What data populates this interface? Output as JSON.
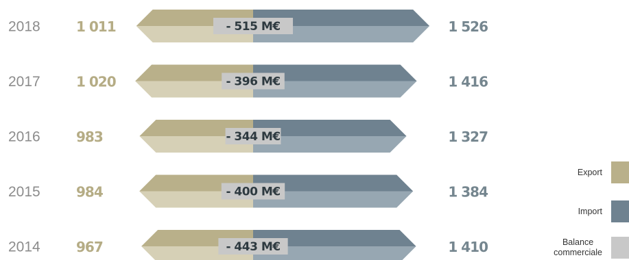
{
  "chart_data": {
    "type": "bar",
    "title": "",
    "unit_label": "M€",
    "rows": [
      {
        "year": "2018",
        "export": 1011,
        "export_label": "1 011",
        "import": 1526,
        "import_label": "1 526",
        "balance": -515,
        "balance_label": "- 515 M€"
      },
      {
        "year": "2017",
        "export": 1020,
        "export_label": "1 020",
        "import": 1416,
        "import_label": "1 416",
        "balance": -396,
        "balance_label": "- 396 M€"
      },
      {
        "year": "2016",
        "export": 983,
        "export_label": "983",
        "import": 1327,
        "import_label": "1 327",
        "balance": -344,
        "balance_label": "- 344 M€"
      },
      {
        "year": "2015",
        "export": 984,
        "export_label": "984",
        "import": 1384,
        "import_label": "1 384",
        "balance": -400,
        "balance_label": "- 400 M€"
      },
      {
        "year": "2014",
        "export": 967,
        "export_label": "967",
        "import": 1410,
        "import_label": "1 410",
        "balance": -443,
        "balance_label": "- 443 M€"
      }
    ],
    "legend": {
      "placement": "right",
      "items": [
        {
          "key": "export",
          "lines": [
            "Export"
          ]
        },
        {
          "key": "import",
          "lines": [
            "Import"
          ]
        },
        {
          "key": "balance",
          "lines": [
            "Balance",
            "commerciale"
          ]
        }
      ]
    }
  },
  "colors": {
    "export": "#b9b08a",
    "export_light": "#d6d0b6",
    "import": "#6f8290",
    "import_light": "#97a7b2",
    "balance": "#c8c8c8",
    "year_text": "#8c8c8c",
    "export_text": "#b5ac85",
    "import_text": "#75868f",
    "balance_text": "#2e3a40"
  }
}
